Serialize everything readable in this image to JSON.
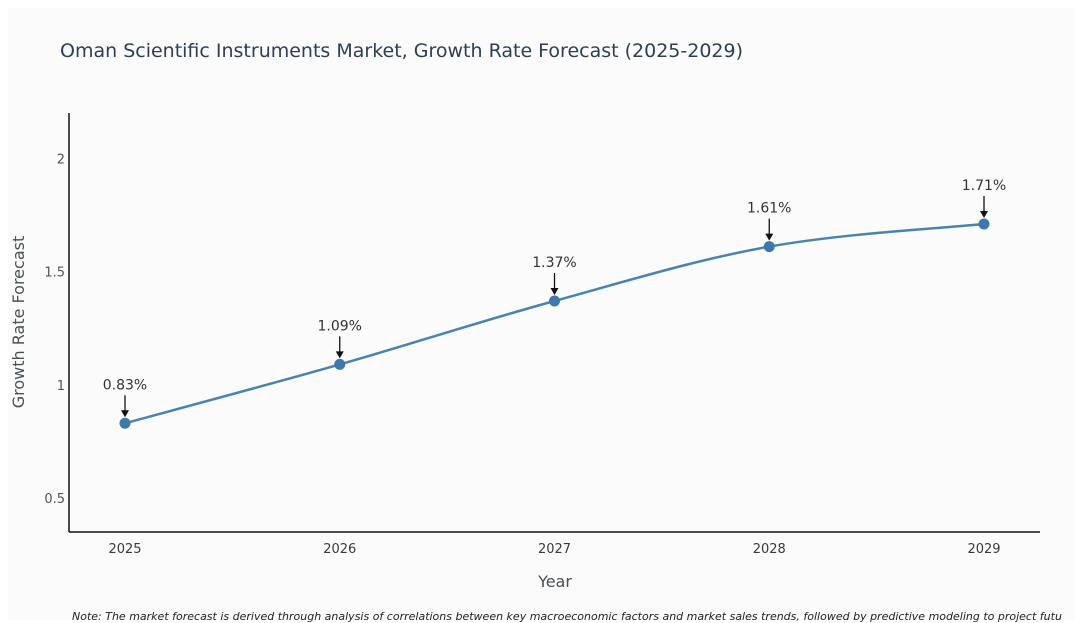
{
  "chart_data": {
    "type": "line",
    "title": "Oman Scientific Instruments Market, Growth Rate Forecast (2025-2029)",
    "xlabel": "Year",
    "ylabel": "Growth Rate Forecast",
    "categories": [
      "2025",
      "2026",
      "2027",
      "2028",
      "2029"
    ],
    "values": [
      0.83,
      1.09,
      1.37,
      1.61,
      1.71
    ],
    "data_labels": [
      "0.83%",
      "1.09%",
      "1.37%",
      "1.61%",
      "1.71%"
    ],
    "yticks": [
      0.5,
      1,
      1.5,
      2
    ],
    "ytick_labels": [
      "0.5",
      "1",
      "1.5",
      "2"
    ],
    "ylim": [
      0.35,
      2.2
    ],
    "grid": false,
    "line_color": "#4a82b0",
    "marker_color": "#3f79ab"
  },
  "note": "Note: The market forecast is derived through analysis of correlations between key macroeconomic factors and market sales trends, followed by predictive modeling to project future s"
}
